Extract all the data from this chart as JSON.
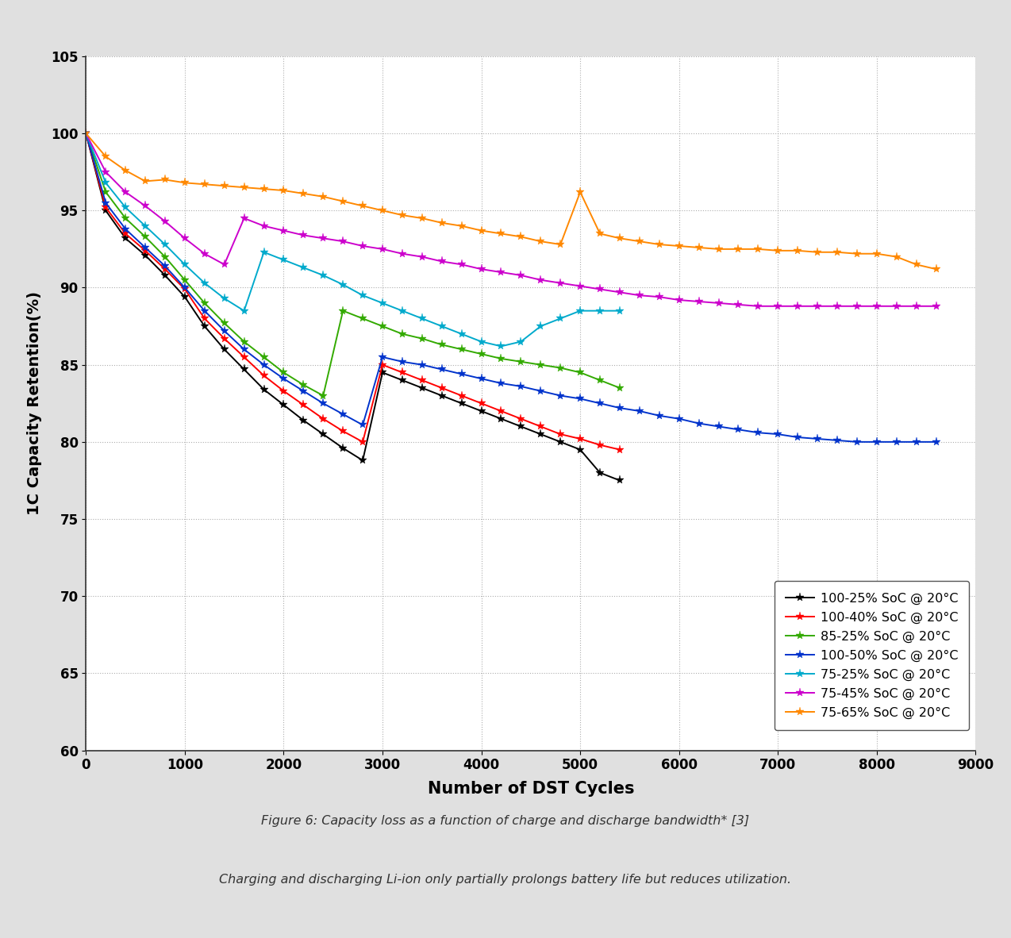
{
  "xlabel": "Number of DST Cycles",
  "ylabel": "1C Capacity Retention(%)",
  "xlim": [
    0,
    9000
  ],
  "ylim": [
    60,
    105
  ],
  "xticks": [
    0,
    1000,
    2000,
    3000,
    4000,
    5000,
    6000,
    7000,
    8000,
    9000
  ],
  "yticks": [
    60,
    65,
    70,
    75,
    80,
    85,
    90,
    95,
    100,
    105
  ],
  "background_color": "#e0e0e0",
  "plot_background": "#ffffff",
  "caption_line1": "Figure 6: Capacity loss as a function of charge and discharge bandwidth* [3]",
  "caption_line2": "Charging and discharging Li-ion only partially prolongs battery life but reduces utilization.",
  "series": [
    {
      "label": "100-25% SoC @ 20°C",
      "color": "#000000",
      "x": [
        0,
        200,
        400,
        600,
        800,
        1000,
        1200,
        1400,
        1600,
        1800,
        2000,
        2200,
        2400,
        2600,
        2800,
        3000,
        3200,
        3400,
        3600,
        3800,
        4000,
        4200,
        4400,
        4600,
        4800,
        5000,
        5200,
        5400
      ],
      "y": [
        100,
        95.0,
        93.2,
        92.1,
        90.8,
        89.4,
        87.5,
        86.0,
        84.7,
        83.4,
        82.4,
        81.4,
        80.5,
        79.6,
        78.8,
        84.5,
        84.0,
        83.5,
        83.0,
        82.5,
        82.0,
        81.5,
        81.0,
        80.5,
        80.0,
        79.5,
        78.0,
        77.5
      ]
    },
    {
      "label": "100-40% SoC @ 20°C",
      "color": "#ff0000",
      "x": [
        0,
        200,
        400,
        600,
        800,
        1000,
        1200,
        1400,
        1600,
        1800,
        2000,
        2200,
        2400,
        2600,
        2800,
        3000,
        3200,
        3400,
        3600,
        3800,
        4000,
        4200,
        4400,
        4600,
        4800,
        5000,
        5200,
        5400
      ],
      "y": [
        100,
        95.2,
        93.5,
        92.4,
        91.2,
        89.9,
        88.0,
        86.7,
        85.5,
        84.3,
        83.3,
        82.4,
        81.5,
        80.7,
        80.0,
        85.0,
        84.5,
        84.0,
        83.5,
        83.0,
        82.5,
        82.0,
        81.5,
        81.0,
        80.5,
        80.2,
        79.8,
        79.5
      ]
    },
    {
      "label": "85-25% SoC @ 20°C",
      "color": "#33aa00",
      "x": [
        0,
        200,
        400,
        600,
        800,
        1000,
        1200,
        1400,
        1600,
        1800,
        2000,
        2200,
        2400,
        2600,
        2800,
        3000,
        3200,
        3400,
        3600,
        3800,
        4000,
        4200,
        4400,
        4600,
        4800,
        5000,
        5200,
        5400
      ],
      "y": [
        100,
        96.2,
        94.5,
        93.3,
        92.0,
        90.5,
        89.0,
        87.7,
        86.5,
        85.5,
        84.5,
        83.7,
        83.0,
        88.5,
        88.0,
        87.5,
        87.0,
        86.7,
        86.3,
        86.0,
        85.7,
        85.4,
        85.2,
        85.0,
        84.8,
        84.5,
        84.0,
        83.5
      ]
    },
    {
      "label": "100-50% SoC @ 20°C",
      "color": "#0033cc",
      "x": [
        0,
        200,
        400,
        600,
        800,
        1000,
        1200,
        1400,
        1600,
        1800,
        2000,
        2200,
        2400,
        2600,
        2800,
        3000,
        3200,
        3400,
        3600,
        3800,
        4000,
        4200,
        4400,
        4600,
        4800,
        5000,
        5200,
        5400,
        5600,
        5800,
        6000,
        6200,
        6400,
        6600,
        6800,
        7000,
        7200,
        7400,
        7600,
        7800,
        8000,
        8200,
        8400,
        8600
      ],
      "y": [
        100,
        95.5,
        93.8,
        92.6,
        91.4,
        90.0,
        88.5,
        87.2,
        86.0,
        85.0,
        84.1,
        83.3,
        82.5,
        81.8,
        81.1,
        85.5,
        85.2,
        85.0,
        84.7,
        84.4,
        84.1,
        83.8,
        83.6,
        83.3,
        83.0,
        82.8,
        82.5,
        82.2,
        82.0,
        81.7,
        81.5,
        81.2,
        81.0,
        80.8,
        80.6,
        80.5,
        80.3,
        80.2,
        80.1,
        80.0,
        80.0,
        80.0,
        80.0,
        80.0
      ]
    },
    {
      "label": "75-25% SoC @ 20°C",
      "color": "#00aacc",
      "x": [
        0,
        200,
        400,
        600,
        800,
        1000,
        1200,
        1400,
        1600,
        1800,
        2000,
        2200,
        2400,
        2600,
        2800,
        3000,
        3200,
        3400,
        3600,
        3800,
        4000,
        4200,
        4400,
        4600,
        4800,
        5000,
        5200,
        5400
      ],
      "y": [
        100,
        96.8,
        95.2,
        94.0,
        92.8,
        91.5,
        90.3,
        89.3,
        88.5,
        92.3,
        91.8,
        91.3,
        90.8,
        90.2,
        89.5,
        89.0,
        88.5,
        88.0,
        87.5,
        87.0,
        86.5,
        86.2,
        86.5,
        87.5,
        88.0,
        88.5,
        88.5,
        88.5
      ]
    },
    {
      "label": "75-45% SoC @ 20°C",
      "color": "#cc00cc",
      "x": [
        0,
        200,
        400,
        600,
        800,
        1000,
        1200,
        1400,
        1600,
        1800,
        2000,
        2200,
        2400,
        2600,
        2800,
        3000,
        3200,
        3400,
        3600,
        3800,
        4000,
        4200,
        4400,
        4600,
        4800,
        5000,
        5200,
        5400,
        5600,
        5800,
        6000,
        6200,
        6400,
        6600,
        6800,
        7000,
        7200,
        7400,
        7600,
        7800,
        8000,
        8200,
        8400,
        8600
      ],
      "y": [
        100,
        97.5,
        96.2,
        95.3,
        94.3,
        93.2,
        92.2,
        91.5,
        94.5,
        94.0,
        93.7,
        93.4,
        93.2,
        93.0,
        92.7,
        92.5,
        92.2,
        92.0,
        91.7,
        91.5,
        91.2,
        91.0,
        90.8,
        90.5,
        90.3,
        90.1,
        89.9,
        89.7,
        89.5,
        89.4,
        89.2,
        89.1,
        89.0,
        88.9,
        88.8,
        88.8,
        88.8,
        88.8,
        88.8,
        88.8,
        88.8,
        88.8,
        88.8,
        88.8
      ]
    },
    {
      "label": "75-65% SoC @ 20°C",
      "color": "#ff8800",
      "x": [
        0,
        200,
        400,
        600,
        800,
        1000,
        1200,
        1400,
        1600,
        1800,
        2000,
        2200,
        2400,
        2600,
        2800,
        3000,
        3200,
        3400,
        3600,
        3800,
        4000,
        4200,
        4400,
        4600,
        4800,
        5000,
        5200,
        5400,
        5600,
        5800,
        6000,
        6200,
        6400,
        6600,
        6800,
        7000,
        7200,
        7400,
        7600,
        7800,
        8000,
        8200,
        8400,
        8600
      ],
      "y": [
        100,
        98.5,
        97.6,
        96.9,
        97.0,
        96.8,
        96.7,
        96.6,
        96.5,
        96.4,
        96.3,
        96.1,
        95.9,
        95.6,
        95.3,
        95.0,
        94.7,
        94.5,
        94.2,
        94.0,
        93.7,
        93.5,
        93.3,
        93.0,
        92.8,
        96.2,
        93.5,
        93.2,
        93.0,
        92.8,
        92.7,
        92.6,
        92.5,
        92.5,
        92.5,
        92.4,
        92.4,
        92.3,
        92.3,
        92.2,
        92.2,
        92.0,
        91.5,
        91.2
      ]
    }
  ]
}
